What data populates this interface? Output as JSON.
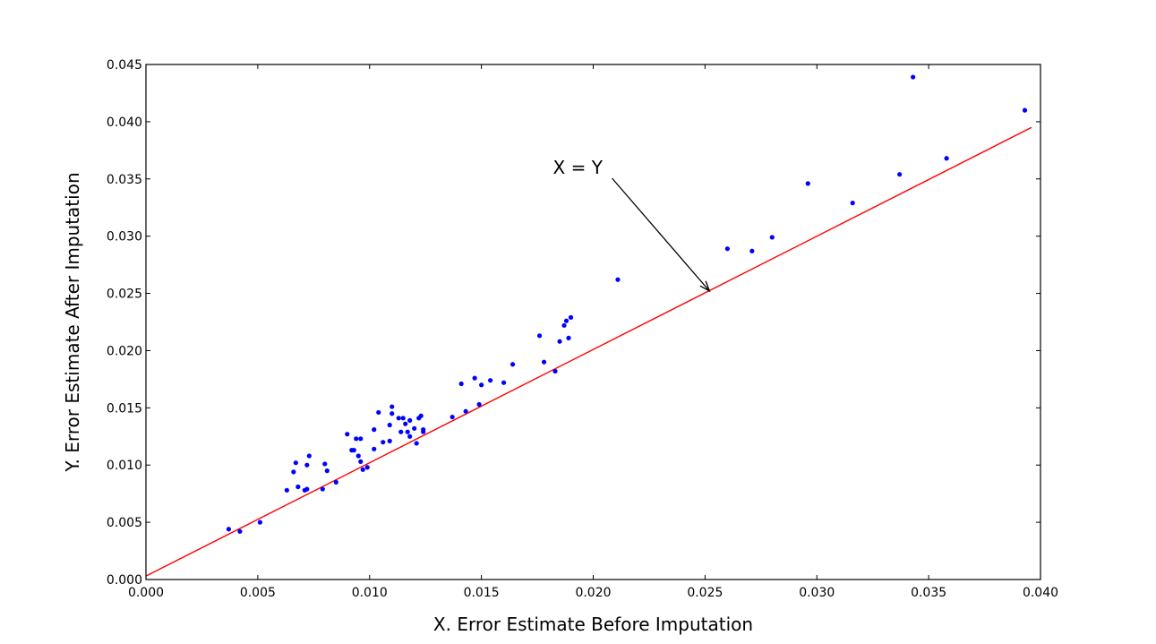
{
  "chart_data": {
    "type": "scatter",
    "title": "",
    "xlabel": "X. Error Estimate Before Imputation",
    "ylabel": "Y. Error Estimate After Imputation",
    "xlim": [
      0.0,
      0.04
    ],
    "ylim": [
      0.0,
      0.045
    ],
    "x_ticks": [
      "0.000",
      "0.005",
      "0.010",
      "0.015",
      "0.020",
      "0.025",
      "0.030",
      "0.035",
      "0.040"
    ],
    "y_ticks": [
      "0.000",
      "0.005",
      "0.010",
      "0.015",
      "0.020",
      "0.025",
      "0.030",
      "0.035",
      "0.040",
      "0.045"
    ],
    "grid": false,
    "colors": {
      "points": "#0000ff",
      "fit_line": "#ff0000",
      "annotation": "#000000"
    },
    "line": {
      "name": "X = Y",
      "x": [
        0.0,
        0.0396
      ],
      "y": [
        0.0003,
        0.0395
      ]
    },
    "annotation": {
      "text": "X = Y",
      "text_at": [
        0.0182,
        0.036
      ],
      "arrow_to": [
        0.0252,
        0.0252
      ]
    },
    "points": [
      [
        0.0037,
        0.0044
      ],
      [
        0.0042,
        0.0042
      ],
      [
        0.0051,
        0.005
      ],
      [
        0.0063,
        0.0078
      ],
      [
        0.0066,
        0.0094
      ],
      [
        0.0067,
        0.0102
      ],
      [
        0.0068,
        0.0081
      ],
      [
        0.0071,
        0.0078
      ],
      [
        0.0072,
        0.0079
      ],
      [
        0.0072,
        0.01
      ],
      [
        0.0073,
        0.0108
      ],
      [
        0.0079,
        0.0079
      ],
      [
        0.008,
        0.0101
      ],
      [
        0.0081,
        0.0095
      ],
      [
        0.0085,
        0.0085
      ],
      [
        0.009,
        0.0127
      ],
      [
        0.0092,
        0.0113
      ],
      [
        0.0093,
        0.0113
      ],
      [
        0.0094,
        0.0123
      ],
      [
        0.0095,
        0.0108
      ],
      [
        0.0096,
        0.0123
      ],
      [
        0.0096,
        0.0103
      ],
      [
        0.0097,
        0.0096
      ],
      [
        0.0099,
        0.0098
      ],
      [
        0.0102,
        0.0131
      ],
      [
        0.0102,
        0.0114
      ],
      [
        0.0104,
        0.0146
      ],
      [
        0.0106,
        0.012
      ],
      [
        0.0109,
        0.0121
      ],
      [
        0.0109,
        0.0135
      ],
      [
        0.011,
        0.0151
      ],
      [
        0.011,
        0.0145
      ],
      [
        0.0113,
        0.0141
      ],
      [
        0.0114,
        0.0129
      ],
      [
        0.0115,
        0.0141
      ],
      [
        0.0116,
        0.0136
      ],
      [
        0.0117,
        0.0129
      ],
      [
        0.0118,
        0.0139
      ],
      [
        0.0118,
        0.0125
      ],
      [
        0.012,
        0.0132
      ],
      [
        0.0121,
        0.0119
      ],
      [
        0.0122,
        0.0141
      ],
      [
        0.0123,
        0.0143
      ],
      [
        0.0124,
        0.0129
      ],
      [
        0.0124,
        0.0131
      ],
      [
        0.0137,
        0.0142
      ],
      [
        0.0141,
        0.0171
      ],
      [
        0.0143,
        0.0147
      ],
      [
        0.0147,
        0.0176
      ],
      [
        0.0149,
        0.0153
      ],
      [
        0.015,
        0.017
      ],
      [
        0.0154,
        0.0174
      ],
      [
        0.016,
        0.0172
      ],
      [
        0.0164,
        0.0188
      ],
      [
        0.0176,
        0.0213
      ],
      [
        0.0178,
        0.019
      ],
      [
        0.0183,
        0.0182
      ],
      [
        0.0185,
        0.0208
      ],
      [
        0.0187,
        0.0222
      ],
      [
        0.0188,
        0.0226
      ],
      [
        0.0189,
        0.0211
      ],
      [
        0.019,
        0.0229
      ],
      [
        0.0211,
        0.0262
      ],
      [
        0.026,
        0.0289
      ],
      [
        0.0271,
        0.0287
      ],
      [
        0.028,
        0.0299
      ],
      [
        0.0296,
        0.0346
      ],
      [
        0.0316,
        0.0329
      ],
      [
        0.0337,
        0.0354
      ],
      [
        0.0343,
        0.0439
      ],
      [
        0.0358,
        0.0368
      ],
      [
        0.0393,
        0.041
      ]
    ]
  }
}
